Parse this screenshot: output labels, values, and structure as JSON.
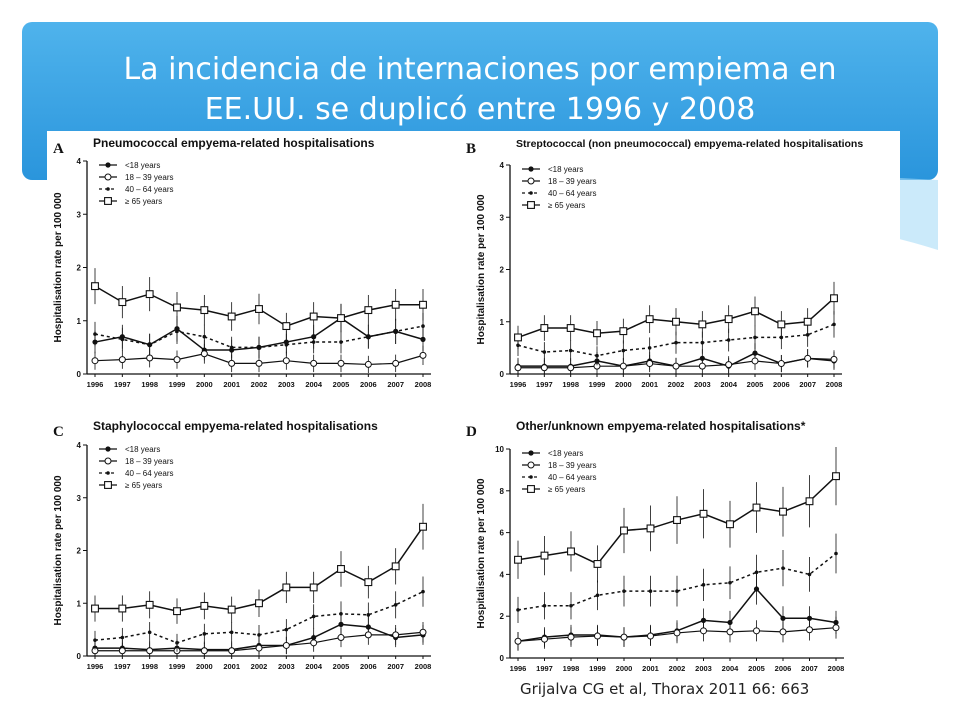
{
  "slide": {
    "title_line1": "La incidencia de internaciones por empiema en",
    "title_line2": "EE.UU. se duplicó entre 1996 y 2008",
    "citation": "Grijalva CG et al,  Thorax 2011 66: 663",
    "accent_color": "#2a95dc"
  },
  "chart_data": [
    {
      "type": "line",
      "panel": "A",
      "title": "Pneumococcal empyema-related hospitalisations",
      "ylabel": "Hospitalisation rate per 100 000",
      "xlabel": "",
      "x": [
        "1996",
        "1997",
        "1998",
        "1999",
        "2000",
        "2001",
        "2002",
        "2003",
        "2004",
        "2005",
        "2006",
        "2007",
        "2008"
      ],
      "ylim": [
        0,
        4
      ],
      "yticks": [
        0,
        1,
        2,
        3,
        4
      ],
      "legend": "top-left",
      "series": [
        {
          "name": "<18 years",
          "values": [
            0.6,
            0.7,
            0.55,
            0.85,
            0.45,
            0.45,
            0.5,
            0.6,
            0.7,
            1.05,
            0.7,
            0.8,
            0.65
          ]
        },
        {
          "name": "18 – 39 years",
          "values": [
            0.25,
            0.27,
            0.3,
            0.27,
            0.38,
            0.2,
            0.2,
            0.25,
            0.2,
            0.2,
            0.18,
            0.2,
            0.35
          ]
        },
        {
          "name": "40 – 64 years",
          "values": [
            0.75,
            0.65,
            0.55,
            0.8,
            0.7,
            0.5,
            0.5,
            0.55,
            0.6,
            0.6,
            0.7,
            0.8,
            0.9
          ]
        },
        {
          "name": "≥ 65 years",
          "values": [
            1.65,
            1.35,
            1.5,
            1.25,
            1.2,
            1.08,
            1.22,
            0.9,
            1.08,
            1.05,
            1.2,
            1.3,
            1.3
          ]
        }
      ]
    },
    {
      "type": "line",
      "panel": "B",
      "title": "Streptococcal (non pneumococcal) empyema-related hospitalisations",
      "ylabel": "Hospitalisation rate per 100 000",
      "xlabel": "",
      "x": [
        "1996",
        "1997",
        "1998",
        "1999",
        "2000",
        "2001",
        "2002",
        "2003",
        "2004",
        "2005",
        "2006",
        "2007",
        "2008"
      ],
      "ylim": [
        0,
        4
      ],
      "yticks": [
        0,
        1,
        2,
        3,
        4
      ],
      "legend": "top-left",
      "series": [
        {
          "name": "<18 years",
          "values": [
            0.15,
            0.15,
            0.15,
            0.25,
            0.15,
            0.25,
            0.15,
            0.3,
            0.15,
            0.4,
            0.2,
            0.3,
            0.25
          ]
        },
        {
          "name": "18 – 39 years",
          "values": [
            0.12,
            0.12,
            0.12,
            0.15,
            0.15,
            0.2,
            0.15,
            0.15,
            0.18,
            0.25,
            0.2,
            0.3,
            0.28
          ]
        },
        {
          "name": "40 – 64 years",
          "values": [
            0.55,
            0.42,
            0.45,
            0.35,
            0.45,
            0.5,
            0.6,
            0.6,
            0.65,
            0.7,
            0.7,
            0.75,
            0.95
          ]
        },
        {
          "name": "≥ 65 years",
          "values": [
            0.7,
            0.88,
            0.88,
            0.78,
            0.82,
            1.05,
            1.0,
            0.95,
            1.05,
            1.2,
            0.95,
            1.0,
            1.45
          ]
        }
      ]
    },
    {
      "type": "line",
      "panel": "C",
      "title": "Staphylococcal empyema-related hospitalisations",
      "ylabel": "Hospitalisation rate per 100 000",
      "xlabel": "",
      "x": [
        "1996",
        "1997",
        "1998",
        "1999",
        "2000",
        "2001",
        "2002",
        "2003",
        "2004",
        "2005",
        "2006",
        "2007",
        "2008"
      ],
      "ylim": [
        0,
        4
      ],
      "yticks": [
        0,
        1,
        2,
        3,
        4
      ],
      "legend": "top-left",
      "series": [
        {
          "name": "<18 years",
          "values": [
            0.15,
            0.15,
            0.12,
            0.15,
            0.12,
            0.12,
            0.2,
            0.2,
            0.35,
            0.6,
            0.55,
            0.35,
            0.4
          ]
        },
        {
          "name": "18 – 39 years",
          "values": [
            0.1,
            0.1,
            0.1,
            0.1,
            0.1,
            0.1,
            0.15,
            0.2,
            0.25,
            0.35,
            0.4,
            0.4,
            0.45
          ]
        },
        {
          "name": "40 – 64 years",
          "values": [
            0.3,
            0.35,
            0.45,
            0.25,
            0.42,
            0.45,
            0.4,
            0.5,
            0.75,
            0.8,
            0.78,
            0.97,
            1.22
          ]
        },
        {
          "name": "≥ 65 years",
          "values": [
            0.9,
            0.9,
            0.97,
            0.85,
            0.95,
            0.88,
            1.0,
            1.3,
            1.3,
            1.65,
            1.4,
            1.7,
            2.45
          ]
        }
      ]
    },
    {
      "type": "line",
      "panel": "D",
      "title": "Other/unknown empyema-related hospitalisations*",
      "ylabel": "Hospitalisation rate per 100 000",
      "xlabel": "",
      "x": [
        "1996",
        "1997",
        "1998",
        "1999",
        "2000",
        "2001",
        "2002",
        "2003",
        "2004",
        "2005",
        "2006",
        "2007",
        "2008"
      ],
      "ylim": [
        0,
        10
      ],
      "yticks": [
        0,
        2,
        4,
        6,
        8,
        10
      ],
      "legend": "top-left",
      "series": [
        {
          "name": "<18 years",
          "values": [
            0.8,
            1.0,
            1.1,
            1.1,
            1.0,
            1.1,
            1.3,
            1.8,
            1.7,
            3.3,
            1.9,
            1.9,
            1.7
          ]
        },
        {
          "name": "18 – 39 years",
          "values": [
            0.8,
            0.9,
            1.0,
            1.05,
            1.0,
            1.05,
            1.2,
            1.3,
            1.25,
            1.3,
            1.25,
            1.35,
            1.45
          ]
        },
        {
          "name": "40 – 64 years",
          "values": [
            2.3,
            2.5,
            2.5,
            3.0,
            3.2,
            3.2,
            3.2,
            3.5,
            3.6,
            4.1,
            4.3,
            4.0,
            5.0
          ]
        },
        {
          "name": "≥ 65 years",
          "values": [
            4.7,
            4.9,
            5.1,
            4.5,
            6.1,
            6.2,
            6.6,
            6.9,
            6.4,
            7.2,
            7.0,
            7.5,
            8.7
          ]
        }
      ]
    }
  ]
}
